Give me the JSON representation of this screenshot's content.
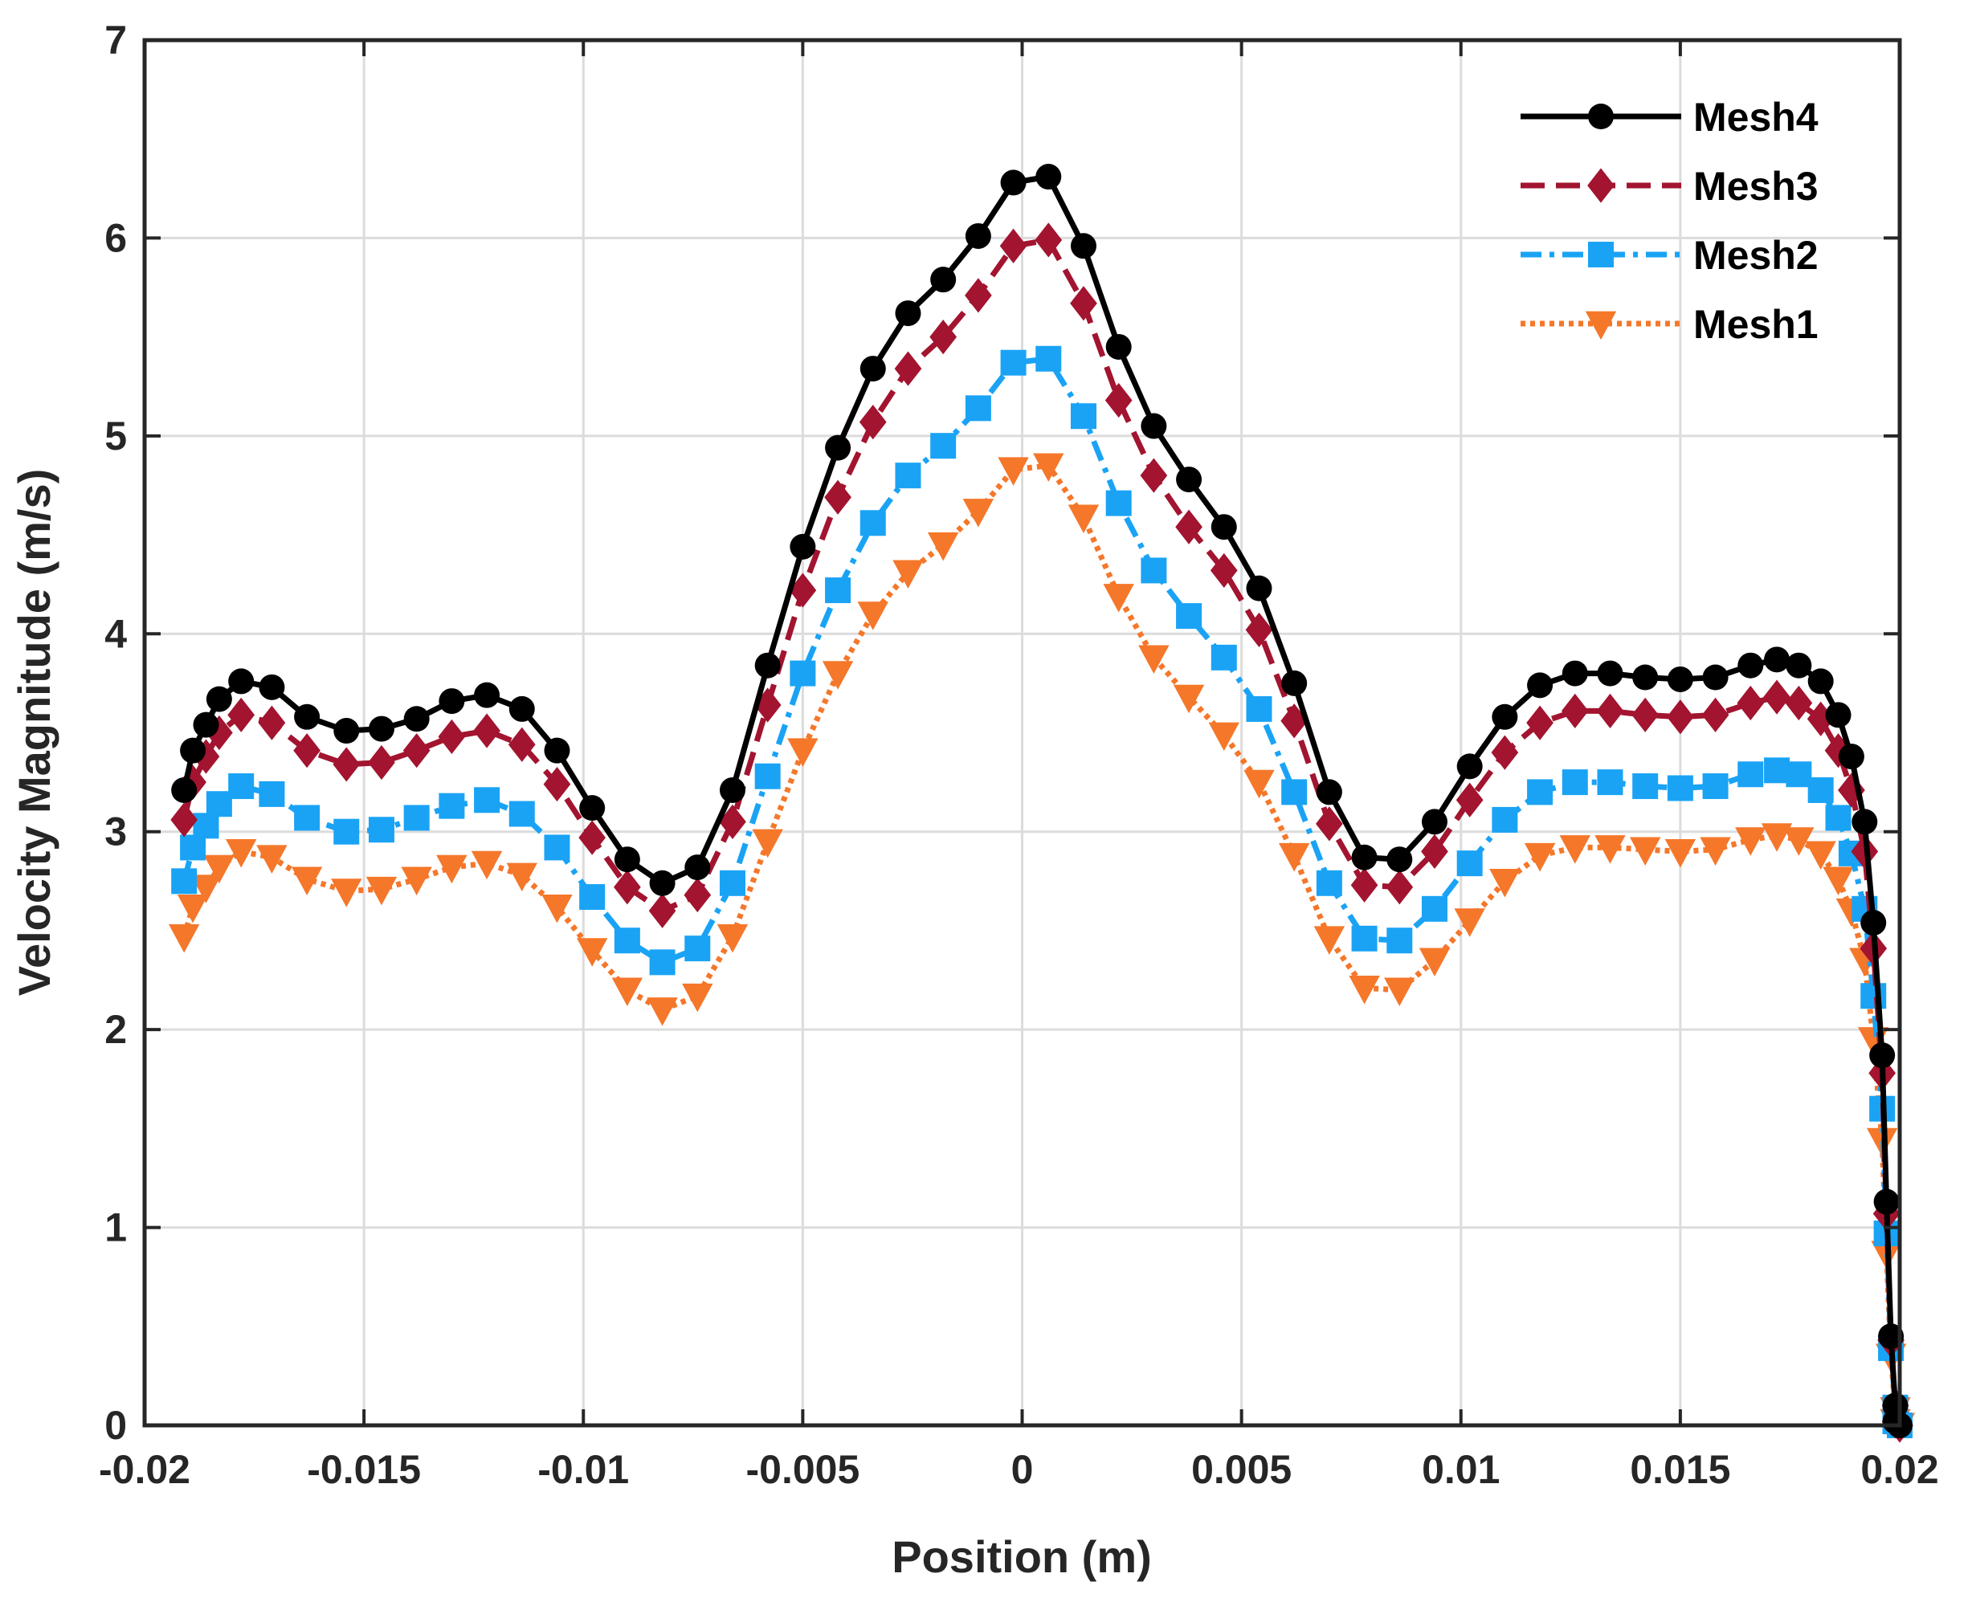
{
  "chart_data": {
    "type": "line",
    "title": "",
    "xlabel": "Position (m)",
    "ylabel": "Velocity Magnitude (m/s)",
    "xlim": [
      -0.02,
      0.02
    ],
    "ylim": [
      0,
      7
    ],
    "grid": true,
    "legend_position": "top-right",
    "x_ticks": [
      -0.02,
      -0.015,
      -0.01,
      -0.005,
      0,
      0.005,
      0.01,
      0.015,
      0.02
    ],
    "x_tick_labels": [
      "-0.02",
      "-0.015",
      "-0.01",
      "-0.005",
      "0",
      "0.005",
      "0.01",
      "0.015",
      "0.02"
    ],
    "y_ticks": [
      0,
      1,
      2,
      3,
      4,
      5,
      6,
      7
    ],
    "y_tick_labels": [
      "0",
      "1",
      "2",
      "3",
      "4",
      "5",
      "6",
      "7"
    ],
    "x": [
      -0.0191,
      -0.0189,
      -0.0186,
      -0.0183,
      -0.0178,
      -0.0171,
      -0.0163,
      -0.0154,
      -0.0146,
      -0.0138,
      -0.013,
      -0.0122,
      -0.0114,
      -0.0106,
      -0.0098,
      -0.009,
      -0.0082,
      -0.0074,
      -0.0066,
      -0.0058,
      -0.005,
      -0.0042,
      -0.0034,
      -0.0026,
      -0.0018,
      -0.001,
      -0.0002,
      0.0006,
      0.0014,
      0.0022,
      0.003,
      0.0038,
      0.0046,
      0.0054,
      0.0062,
      0.007,
      0.0078,
      0.0086,
      0.0094,
      0.0102,
      0.011,
      0.0118,
      0.0126,
      0.0134,
      0.0142,
      0.015,
      0.0158,
      0.0166,
      0.0172,
      0.0177,
      0.0182,
      0.0186,
      0.0189,
      0.0192,
      0.0194,
      0.0196,
      0.0197,
      0.0198,
      0.0199,
      0.0199,
      0.02
    ],
    "series": [
      {
        "name": "Mesh4",
        "color": "#000000",
        "dash": "solid",
        "marker": "circle",
        "values": [
          3.21,
          3.41,
          3.54,
          3.67,
          3.76,
          3.73,
          3.58,
          3.51,
          3.52,
          3.57,
          3.66,
          3.69,
          3.62,
          3.41,
          3.12,
          2.86,
          2.74,
          2.82,
          3.21,
          3.84,
          4.44,
          4.94,
          5.34,
          5.62,
          5.79,
          6.01,
          6.28,
          6.31,
          5.96,
          5.45,
          5.05,
          4.78,
          4.54,
          4.23,
          3.75,
          3.2,
          2.87,
          2.86,
          3.05,
          3.33,
          3.58,
          3.74,
          3.8,
          3.8,
          3.78,
          3.77,
          3.78,
          3.84,
          3.87,
          3.84,
          3.76,
          3.59,
          3.38,
          3.05,
          2.54,
          1.87,
          1.13,
          0.45,
          0.1,
          0.02,
          0.0
        ]
      },
      {
        "name": "Mesh3",
        "color": "#A2142F",
        "dash": "dashed",
        "marker": "diamond",
        "values": [
          3.06,
          3.25,
          3.38,
          3.5,
          3.59,
          3.55,
          3.41,
          3.34,
          3.35,
          3.41,
          3.48,
          3.51,
          3.44,
          3.24,
          2.97,
          2.72,
          2.6,
          2.68,
          3.05,
          3.64,
          4.22,
          4.69,
          5.07,
          5.34,
          5.5,
          5.71,
          5.96,
          5.99,
          5.67,
          5.18,
          4.8,
          4.54,
          4.32,
          4.02,
          3.56,
          3.04,
          2.73,
          2.72,
          2.9,
          3.16,
          3.4,
          3.55,
          3.61,
          3.61,
          3.59,
          3.58,
          3.59,
          3.65,
          3.68,
          3.65,
          3.57,
          3.41,
          3.21,
          2.9,
          2.41,
          1.78,
          1.07,
          0.43,
          0.1,
          0.02,
          0.0
        ]
      },
      {
        "name": "Mesh2",
        "color": "#1AA3F5",
        "dash": "dashdot",
        "marker": "square",
        "values": [
          2.75,
          2.92,
          3.03,
          3.14,
          3.23,
          3.19,
          3.07,
          3.0,
          3.01,
          3.07,
          3.13,
          3.16,
          3.09,
          2.92,
          2.67,
          2.45,
          2.34,
          2.41,
          2.74,
          3.28,
          3.8,
          4.22,
          4.56,
          4.8,
          4.95,
          5.14,
          5.37,
          5.39,
          5.1,
          4.66,
          4.32,
          4.09,
          3.88,
          3.62,
          3.2,
          2.74,
          2.46,
          2.45,
          2.61,
          2.84,
          3.06,
          3.2,
          3.25,
          3.25,
          3.23,
          3.22,
          3.23,
          3.29,
          3.31,
          3.29,
          3.21,
          3.07,
          2.89,
          2.61,
          2.17,
          1.6,
          0.97,
          0.39,
          0.09,
          0.02,
          0.0
        ]
      },
      {
        "name": "Mesh1",
        "color": "#F5772A",
        "dash": "dotted",
        "marker": "triangle-down",
        "values": [
          2.47,
          2.62,
          2.72,
          2.82,
          2.9,
          2.87,
          2.76,
          2.7,
          2.71,
          2.76,
          2.82,
          2.84,
          2.78,
          2.62,
          2.4,
          2.2,
          2.1,
          2.17,
          2.47,
          2.95,
          3.41,
          3.8,
          4.1,
          4.31,
          4.45,
          4.62,
          4.83,
          4.85,
          4.59,
          4.19,
          3.88,
          3.68,
          3.49,
          3.25,
          2.88,
          2.46,
          2.21,
          2.2,
          2.35,
          2.55,
          2.75,
          2.88,
          2.92,
          2.92,
          2.91,
          2.9,
          2.91,
          2.96,
          2.98,
          2.96,
          2.89,
          2.76,
          2.6,
          2.35,
          1.95,
          1.44,
          0.87,
          0.35,
          0.08,
          0.02,
          0.0
        ]
      }
    ]
  }
}
